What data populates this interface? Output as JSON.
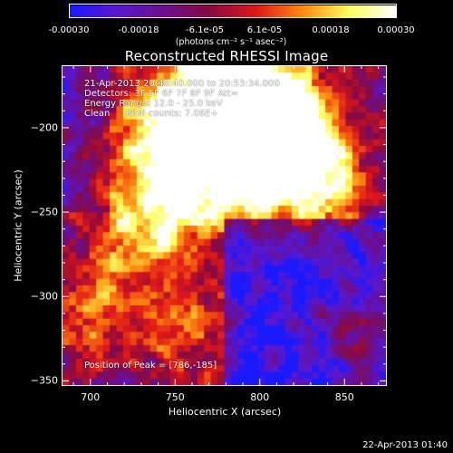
{
  "colorbar": {
    "labels": [
      "-0.00030",
      "-0.00018",
      "-6.1e-05",
      "6.1e-05",
      "0.00018",
      "0.00030"
    ],
    "units": "(photons cm⁻² s⁻¹ asec⁻²)",
    "colors": [
      "#1a1aff",
      "#5a18d0",
      "#6a1090",
      "#8a0a40",
      "#e01818",
      "#ff8a10",
      "#ffff60",
      "#ffffff"
    ]
  },
  "chart_data": {
    "type": "heatmap",
    "title": "Reconstructed RHESSI Image",
    "xlabel": "Heliocentric X (arcsec)",
    "ylabel": "Heliocentric Y (arcsec)",
    "xlim": [
      683,
      875
    ],
    "ylim": [
      -353,
      -163
    ],
    "xticks": [
      700,
      750,
      800,
      850
    ],
    "yticks": [
      -200,
      -250,
      -300,
      -350
    ],
    "clim": [
      -0.0003,
      0.0003
    ],
    "peak": [
      786,
      -185
    ],
    "annotations": [
      "21-Apr-2013 20:48:40.000 to 20:53:34.000",
      "Detectors: 3F 5F 6F 7F 8F 9F Att=",
      "Energy Range: 12.0 - 25.0 keV",
      "Clean     Total counts: 7.06E+"
    ],
    "peak_text": "Position of Peak = [786,-185]"
  },
  "timestamp": "22-Apr-2013 01:40"
}
